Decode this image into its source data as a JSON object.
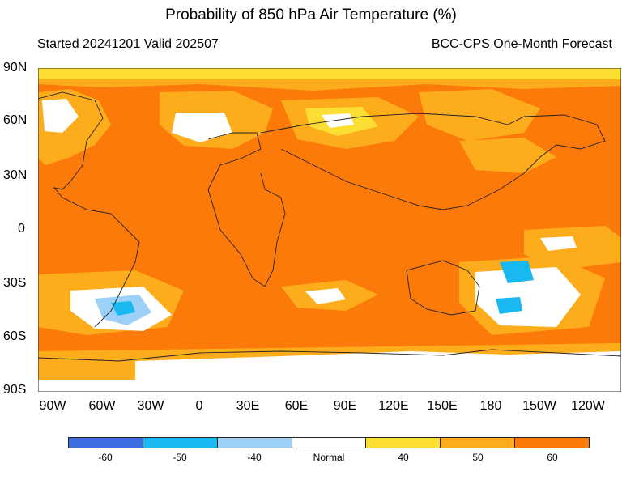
{
  "title": "Probability of 850 hPa Air Temperature (%)",
  "subtitle_left": "Started 20241201  Valid 202507",
  "subtitle_right": "BCC-CPS One-Month Forecast",
  "lat_labels": [
    "90N",
    "60N",
    "30N",
    "0",
    "30S",
    "60S",
    "90S"
  ],
  "lon_labels": [
    "90W",
    "60W",
    "30W",
    "0",
    "30E",
    "60E",
    "90E",
    "120E",
    "150E",
    "180",
    "150W",
    "120W"
  ],
  "legend": {
    "colors": [
      "#3d6fe0",
      "#1ab8f0",
      "#9dd0f7",
      "#ffffff",
      "#fddf33",
      "#fdac1c",
      "#fc7a0a"
    ],
    "labels": [
      "-60",
      "-50",
      "-40",
      "Normal",
      "40",
      "50",
      "60"
    ]
  },
  "colors": {
    "hot60": "#fc7a0a",
    "warm50": "#fdac1c",
    "warm40": "#fddf33",
    "normal": "#ffffff",
    "cool40": "#9dd0f7",
    "cool50": "#1ab8f0"
  }
}
